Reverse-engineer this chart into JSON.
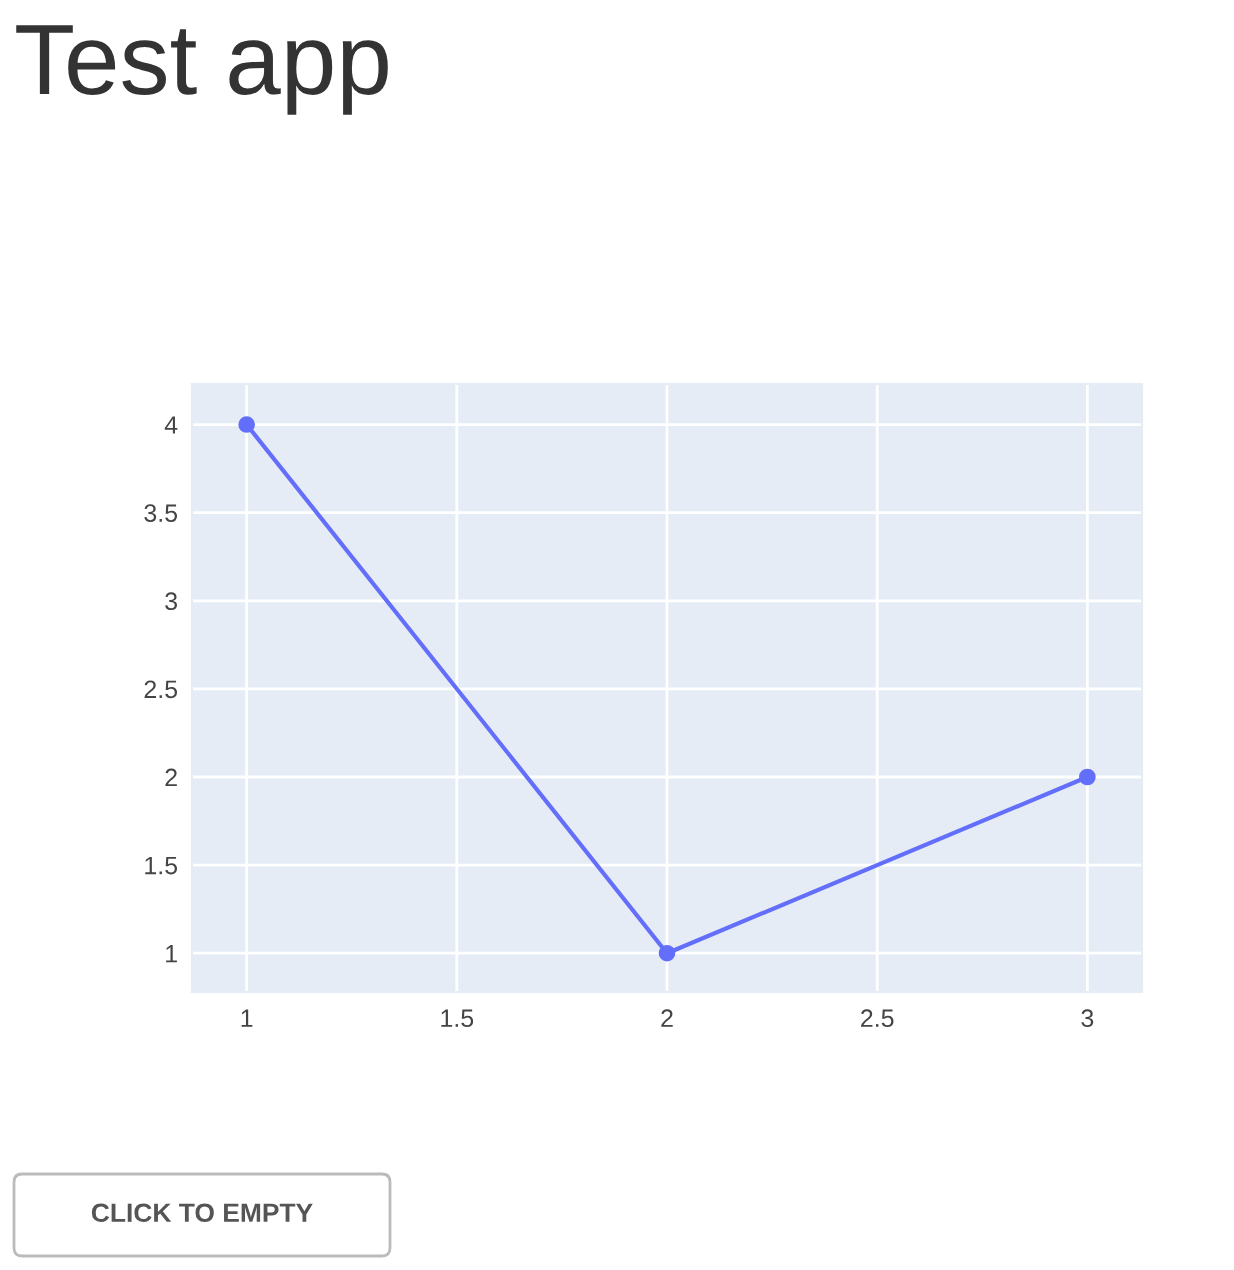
{
  "chart_data": {
    "type": "line",
    "title": "Test app",
    "x": [
      1,
      2,
      3
    ],
    "series": [
      {
        "color": "#636efa",
        "values": [
          4,
          1,
          2
        ]
      }
    ],
    "xlim": [
      0.87,
      3.13
    ],
    "ylim": [
      0.78,
      4.23
    ],
    "xticks": [
      1,
      1.5,
      2,
      2.5,
      3
    ],
    "yticks": [
      1,
      1.5,
      2,
      2.5,
      3,
      3.5,
      4
    ],
    "grid": true,
    "marker": "circle",
    "line_style": "solid",
    "annotations": [
      "CLICK TO EMPTY"
    ]
  }
}
